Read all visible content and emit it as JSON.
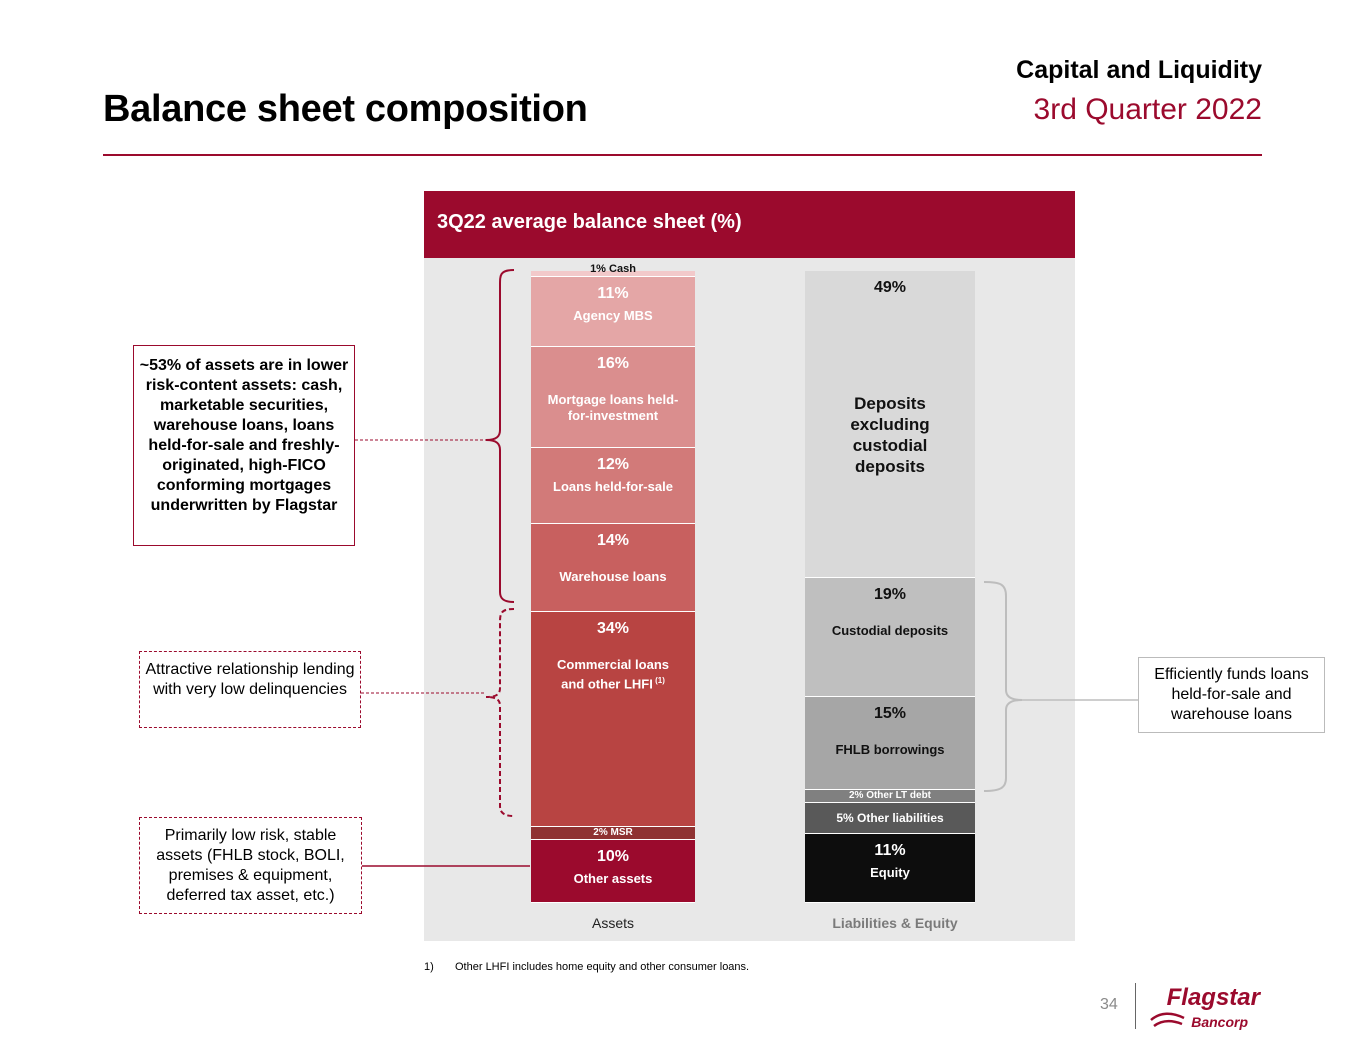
{
  "header": {
    "title": "Balance sheet composition",
    "section": "Capital and Liquidity",
    "quarter": "3rd Quarter 2022"
  },
  "chart_data": {
    "type": "bar",
    "title": "3Q22 average balance sheet (%)",
    "categories": [
      "Assets",
      "Liabilities & Equity"
    ],
    "stacked": true,
    "ylim": [
      0,
      100
    ],
    "series": [
      {
        "category": "Assets",
        "segments": [
          {
            "value": 1,
            "pct_text": "",
            "label": "1% Cash",
            "color": "#f2c9ca"
          },
          {
            "value": 11,
            "pct_text": "11%",
            "label": "Agency MBS",
            "color": "#e4a6a6"
          },
          {
            "value": 16,
            "pct_text": "16%",
            "label": "Mortgage loans held-for-investment",
            "color": "#da8e8e"
          },
          {
            "value": 12,
            "pct_text": "12%",
            "label": "Loans held-for-sale",
            "color": "#d27a79"
          },
          {
            "value": 14,
            "pct_text": "14%",
            "label": "Warehouse loans",
            "color": "#c8605f"
          },
          {
            "value": 34,
            "pct_text": "34%",
            "label": "Commercial loans and other LHFI",
            "footnote": "(1)",
            "color": "#b84442"
          },
          {
            "value": 2,
            "pct_text": "",
            "label": "2% MSR",
            "color": "#8f3232"
          },
          {
            "value": 10,
            "pct_text": "10%",
            "label": "Other assets",
            "color": "#9b0a2d"
          }
        ]
      },
      {
        "category": "Liabilities & Equity",
        "segments": [
          {
            "value": 49,
            "pct_text": "49%",
            "label": "Deposits excluding custodial deposits",
            "color": "#d9d9d9"
          },
          {
            "value": 19,
            "pct_text": "19%",
            "label": "Custodial deposits",
            "color": "#bfbfbf"
          },
          {
            "value": 15,
            "pct_text": "15%",
            "label": "FHLB borrowings",
            "color": "#a6a6a6"
          },
          {
            "value": 2,
            "pct_text": "",
            "label": "2% Other LT debt",
            "color": "#808080"
          },
          {
            "value": 5,
            "pct_text": "",
            "label": "5% Other liabilities",
            "color": "#595959"
          },
          {
            "value": 11,
            "pct_text": "11%",
            "label": "Equity",
            "color": "#0d0d0d"
          }
        ]
      }
    ]
  },
  "callouts": {
    "low_risk": "~53% of assets are in lower risk-content assets: cash, marketable securities, warehouse loans, loans held-for-sale and freshly-originated, high-FICO conforming mortgages underwritten by Flagstar",
    "relationship": "Attractive relationship lending with very low delinquencies",
    "stable": "Primarily low risk, stable assets (FHLB stock, BOLI, premises & equipment, deferred tax asset, etc.)",
    "funds": "Efficiently funds loans held-for-sale and warehouse loans"
  },
  "footnote": {
    "number": "1)",
    "text": "Other LHFI includes home equity and other consumer loans."
  },
  "footer": {
    "page_number": "34",
    "logo_main": "Flagstar",
    "logo_sub": "Bancorp"
  },
  "colors": {
    "accent": "#9b0a2d"
  }
}
